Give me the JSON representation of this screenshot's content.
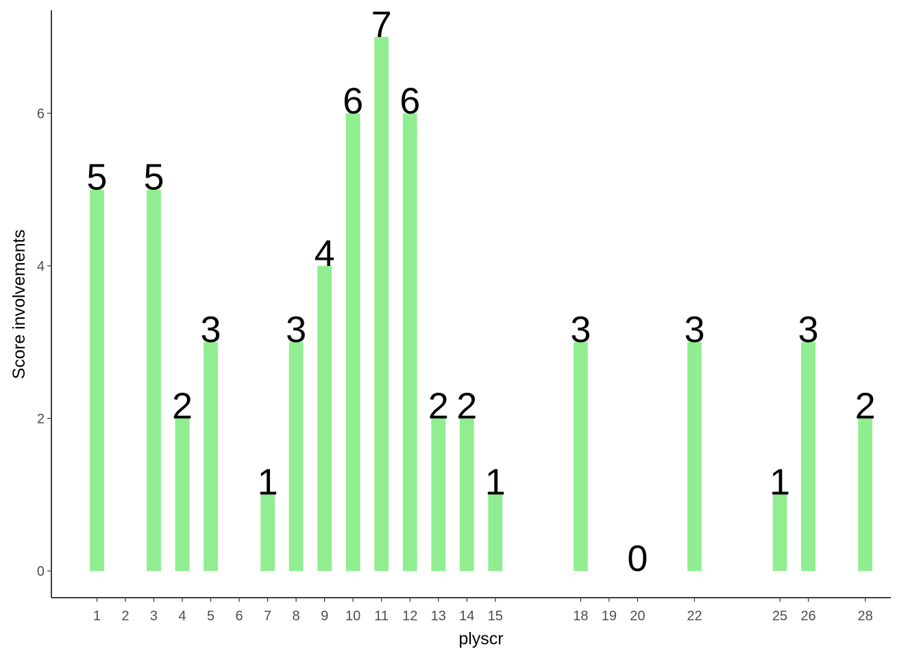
{
  "chart_data": {
    "type": "bar",
    "x_label": "plyscr",
    "y_label": "Score involvements",
    "x": [
      1,
      3,
      4,
      5,
      7,
      8,
      9,
      10,
      11,
      12,
      13,
      14,
      15,
      18,
      20,
      22,
      25,
      26,
      28
    ],
    "values": [
      5,
      5,
      2,
      3,
      1,
      3,
      4,
      6,
      7,
      6,
      2,
      2,
      1,
      3,
      0,
      3,
      1,
      3,
      2
    ],
    "color": "#90ee90",
    "xlim": [
      -0.6,
      28.9
    ],
    "xticks": [
      1,
      2,
      3,
      4,
      5,
      6,
      7,
      8,
      9,
      10,
      11,
      12,
      13,
      14,
      15,
      18,
      19,
      20,
      22,
      25,
      26,
      28
    ],
    "ylim": [
      -0.35,
      7.35
    ],
    "yticks": [
      0,
      2,
      4,
      6
    ],
    "grid": false
  }
}
